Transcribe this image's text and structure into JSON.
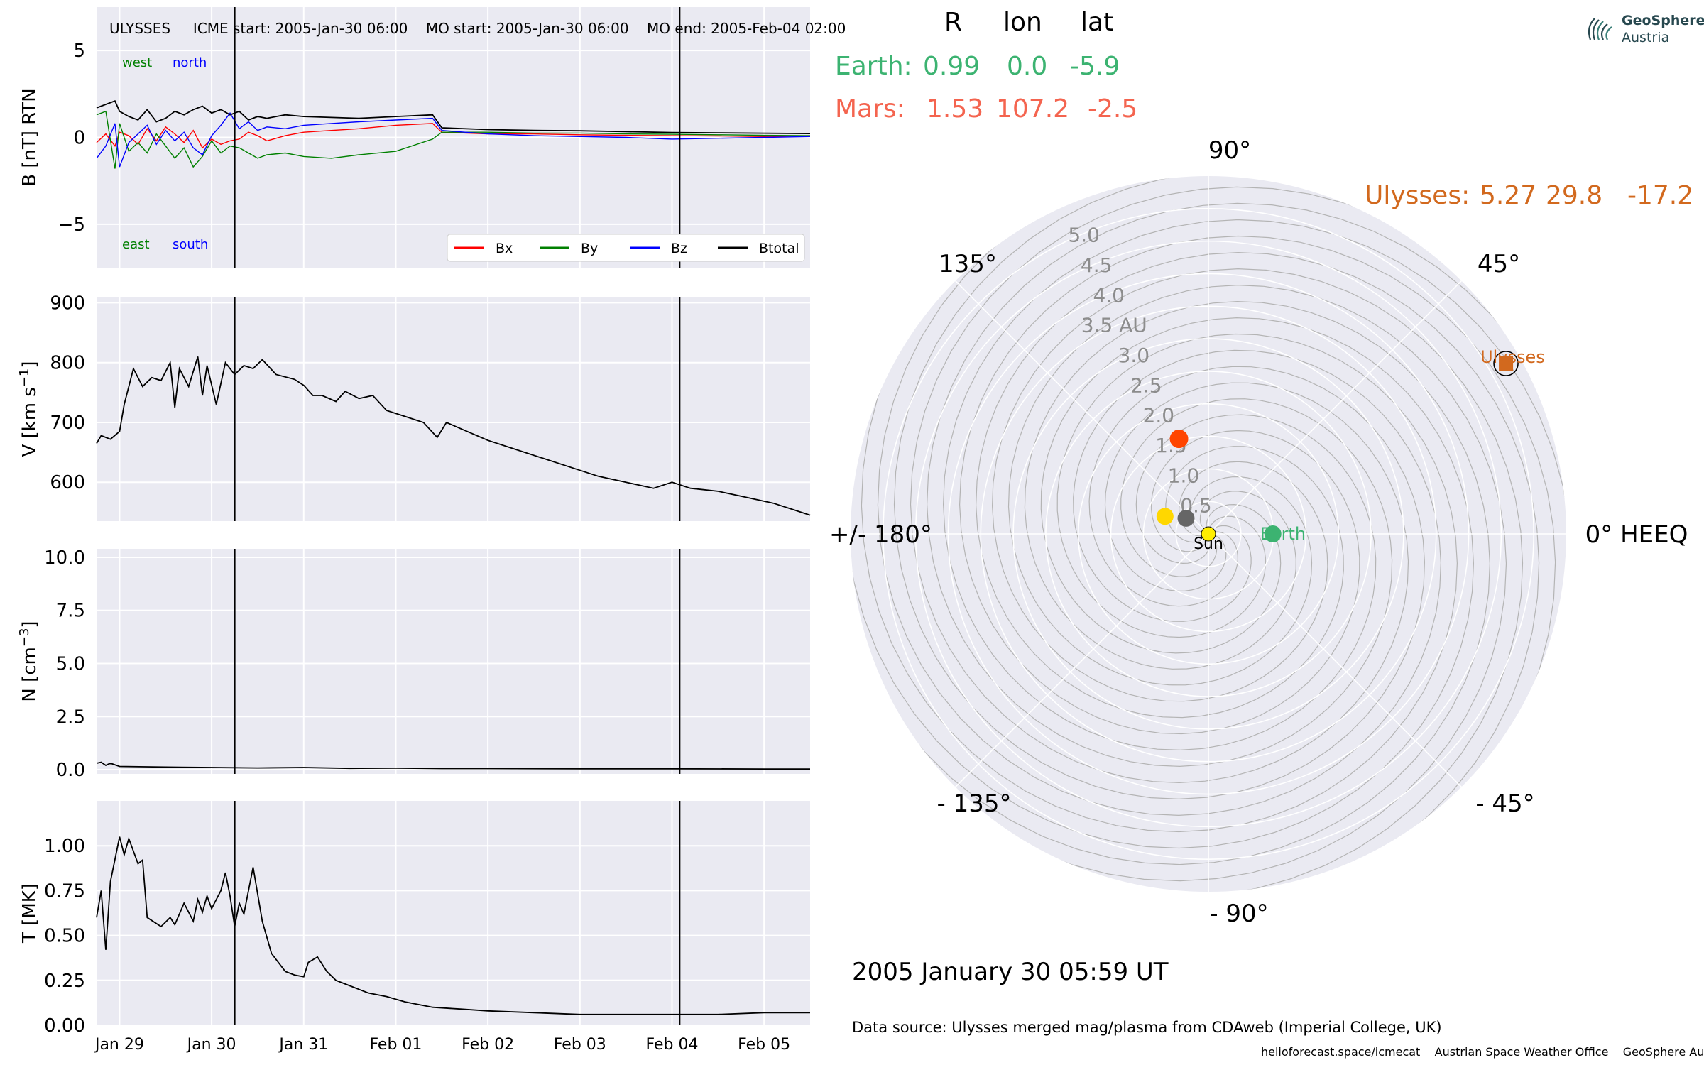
{
  "title": {
    "spacecraft": "ULYSSES",
    "icme_start": "ICME start: 2005-Jan-30 06:00",
    "mo_start": "MO start: 2005-Jan-30 06:00",
    "mo_end": "MO end: 2005-Feb-04 02:00"
  },
  "table": {
    "headers": [
      "R",
      "lon",
      "lat"
    ],
    "earth": {
      "label": "Earth:",
      "R": "0.99",
      "lon": "0.0",
      "lat": "-5.9"
    },
    "mars": {
      "label": "Mars:",
      "R": "1.53",
      "lon": "107.2",
      "lat": "-2.5"
    },
    "ulysses": {
      "label": "Ulysses:",
      "R": "5.27",
      "lon": "29.8",
      "lat": "-17.2"
    }
  },
  "date_text": "2005 January 30  05:59 UT",
  "data_source": "Data source: Ulysses merged mag/plasma from CDAweb (Imperial College, UK)",
  "footer": {
    "site": "helioforecast.space/icmecat",
    "office": "Austrian Space Weather Office",
    "org": "GeoSphere Austria"
  },
  "logo": {
    "line1": "GeoSphere",
    "line2": "Austria"
  },
  "colors": {
    "Bx": "#ff0000",
    "By": "#008000",
    "Bz": "#0000ff",
    "Btotal": "#000000",
    "earth": "#3cb371",
    "mars": "#ff4500",
    "ulysses": "#d2691e",
    "sun": "#ffee00",
    "venus": "#ffd700",
    "mercury": "#666666",
    "panel_bg": "#eaeaf2"
  },
  "chart_data": [
    {
      "type": "line",
      "id": "mag",
      "ylabel": "B [nT] RTN",
      "ylim": [
        -7.5,
        7.5
      ],
      "yticks": [
        -5,
        0,
        5
      ],
      "annotations": {
        "top_left": "west",
        "top_right": "north",
        "bottom_left": "east",
        "bottom_right": "south"
      },
      "x_unit": "days since 2005-01-28 00:00",
      "xlim": [
        0.75,
        8.5
      ],
      "xticks": [
        {
          "label": "Jan 29",
          "x": 1
        },
        {
          "label": "Jan 30",
          "x": 2
        },
        {
          "label": "Jan 31",
          "x": 3
        },
        {
          "label": "Feb 01",
          "x": 4
        },
        {
          "label": "Feb 02",
          "x": 5
        },
        {
          "label": "Feb 03",
          "x": 6
        },
        {
          "label": "Feb 04",
          "x": 7
        },
        {
          "label": "Feb 05",
          "x": 8
        }
      ],
      "vlines": [
        2.25,
        7.083
      ],
      "legend": {
        "placement": "bottom-right",
        "entries": [
          "Bx",
          "By",
          "Bz",
          "Btotal"
        ]
      },
      "series": [
        {
          "name": "Btotal",
          "x": [
            0.75,
            0.85,
            0.95,
            1.0,
            1.1,
            1.2,
            1.3,
            1.4,
            1.5,
            1.6,
            1.7,
            1.8,
            1.9,
            2.0,
            2.1,
            2.2,
            2.3,
            2.4,
            2.5,
            2.6,
            2.8,
            3.0,
            3.3,
            3.6,
            4.0,
            4.4,
            4.5,
            5.0,
            5.5,
            6.0,
            6.5,
            7.0,
            7.5,
            8.0,
            8.5
          ],
          "y": [
            1.7,
            1.9,
            2.1,
            1.5,
            1.2,
            1.0,
            1.6,
            0.9,
            1.1,
            1.5,
            1.3,
            1.6,
            1.8,
            1.4,
            1.6,
            1.3,
            1.5,
            1.0,
            1.2,
            1.1,
            1.3,
            1.2,
            1.15,
            1.1,
            1.2,
            1.3,
            0.55,
            0.45,
            0.4,
            0.38,
            0.33,
            0.28,
            0.26,
            0.24,
            0.22
          ]
        },
        {
          "name": "Bx",
          "x": [
            0.75,
            0.85,
            0.95,
            1.0,
            1.1,
            1.2,
            1.3,
            1.4,
            1.5,
            1.6,
            1.7,
            1.8,
            1.9,
            2.0,
            2.1,
            2.2,
            2.3,
            2.4,
            2.5,
            2.6,
            2.8,
            3.0,
            3.3,
            3.6,
            4.0,
            4.4,
            4.5,
            5.0,
            5.5,
            6.0,
            6.5,
            7.0,
            7.5,
            8.0,
            8.5
          ],
          "y": [
            -0.3,
            0.2,
            -0.5,
            0.3,
            0.1,
            -0.4,
            0.5,
            -0.2,
            0.6,
            0.2,
            -0.3,
            0.4,
            -0.6,
            -0.1,
            -0.4,
            -0.2,
            -0.1,
            0.3,
            0.1,
            -0.2,
            0.1,
            0.3,
            0.4,
            0.5,
            0.7,
            0.8,
            0.3,
            0.2,
            0.2,
            0.15,
            0.12,
            0.1,
            0.08,
            0.05,
            0.1
          ]
        },
        {
          "name": "By",
          "x": [
            0.75,
            0.85,
            0.95,
            1.0,
            1.1,
            1.2,
            1.3,
            1.4,
            1.5,
            1.6,
            1.7,
            1.8,
            1.9,
            2.0,
            2.1,
            2.2,
            2.3,
            2.4,
            2.5,
            2.6,
            2.8,
            3.0,
            3.3,
            3.6,
            4.0,
            4.4,
            4.5,
            5.0,
            5.5,
            6.0,
            6.5,
            7.0,
            7.5,
            8.0,
            8.5
          ],
          "y": [
            1.3,
            1.5,
            -1.8,
            0.8,
            -0.8,
            -0.3,
            -0.9,
            0.2,
            -0.5,
            -1.2,
            -0.6,
            -1.7,
            -1.1,
            -0.2,
            -0.9,
            -0.5,
            -0.6,
            -0.9,
            -1.2,
            -1.0,
            -0.9,
            -1.1,
            -1.2,
            -1.0,
            -0.8,
            -0.1,
            0.3,
            0.3,
            0.25,
            0.25,
            0.2,
            0.18,
            0.15,
            0.12,
            0.1
          ]
        },
        {
          "name": "Bz",
          "x": [
            0.75,
            0.85,
            0.95,
            1.0,
            1.1,
            1.2,
            1.3,
            1.4,
            1.5,
            1.6,
            1.7,
            1.8,
            1.9,
            2.0,
            2.1,
            2.2,
            2.3,
            2.4,
            2.5,
            2.6,
            2.8,
            3.0,
            3.3,
            3.6,
            4.0,
            4.4,
            4.5,
            5.0,
            5.5,
            6.0,
            6.5,
            7.0,
            7.5,
            8.0,
            8.5
          ],
          "y": [
            -1.2,
            -0.5,
            0.8,
            -1.7,
            -0.3,
            0.2,
            0.7,
            -0.4,
            0.4,
            -0.2,
            0.3,
            -0.6,
            -1.0,
            0.1,
            0.7,
            1.4,
            0.5,
            0.9,
            0.4,
            0.6,
            0.5,
            0.7,
            0.8,
            0.9,
            1.0,
            1.1,
            0.4,
            0.2,
            0.1,
            0.05,
            0.0,
            -0.1,
            -0.05,
            0.0,
            0.05
          ]
        }
      ]
    },
    {
      "type": "line",
      "id": "speed",
      "ylabel": "V [km s",
      "ylabel_sup": "−1",
      "ylabel_end": "]",
      "ylim": [
        535,
        910
      ],
      "yticks": [
        600,
        700,
        800,
        900
      ],
      "xlim": [
        0.75,
        8.5
      ],
      "vlines": [
        2.25,
        7.083
      ],
      "series": [
        {
          "name": "V",
          "x": [
            0.75,
            0.8,
            0.9,
            1.0,
            1.05,
            1.15,
            1.25,
            1.35,
            1.45,
            1.55,
            1.6,
            1.65,
            1.75,
            1.85,
            1.9,
            1.95,
            2.05,
            2.15,
            2.25,
            2.35,
            2.45,
            2.55,
            2.7,
            2.9,
            3.0,
            3.1,
            3.2,
            3.35,
            3.45,
            3.6,
            3.75,
            3.9,
            4.1,
            4.3,
            4.45,
            4.55,
            4.7,
            5.0,
            5.3,
            5.6,
            5.9,
            6.2,
            6.5,
            6.8,
            7.0,
            7.2,
            7.5,
            7.8,
            8.1,
            8.3,
            8.5
          ],
          "y": [
            665,
            678,
            672,
            685,
            730,
            790,
            760,
            775,
            770,
            800,
            725,
            790,
            760,
            810,
            745,
            795,
            730,
            800,
            780,
            795,
            790,
            805,
            780,
            772,
            762,
            745,
            745,
            735,
            752,
            740,
            745,
            720,
            710,
            700,
            675,
            700,
            690,
            670,
            655,
            640,
            625,
            610,
            600,
            590,
            600,
            590,
            585,
            575,
            565,
            555,
            545
          ]
        }
      ]
    },
    {
      "type": "line",
      "id": "density",
      "ylabel": "N [cm",
      "ylabel_sup": "−3",
      "ylabel_end": "]",
      "ylim": [
        -0.2,
        10.4
      ],
      "yticks": [
        0.0,
        2.5,
        5.0,
        7.5,
        10.0
      ],
      "xlim": [
        0.75,
        8.5
      ],
      "vlines": [
        2.25,
        7.083
      ],
      "series": [
        {
          "name": "N",
          "x": [
            0.75,
            0.8,
            0.85,
            0.9,
            1.0,
            1.5,
            2.0,
            2.5,
            3.0,
            3.5,
            4.0,
            4.5,
            5.0,
            6.0,
            7.0,
            8.0,
            8.5
          ],
          "y": [
            0.3,
            0.35,
            0.2,
            0.3,
            0.15,
            0.12,
            0.1,
            0.08,
            0.1,
            0.06,
            0.07,
            0.05,
            0.05,
            0.04,
            0.04,
            0.03,
            0.03
          ]
        }
      ]
    },
    {
      "type": "line",
      "id": "temperature",
      "ylabel": "T [MK]",
      "ylim": [
        0.0,
        1.25
      ],
      "yticks": [
        0.0,
        0.25,
        0.5,
        0.75,
        1.0
      ],
      "xlim": [
        0.75,
        8.5
      ],
      "vlines": [
        2.25,
        7.083
      ],
      "series": [
        {
          "name": "T",
          "x": [
            0.75,
            0.8,
            0.85,
            0.9,
            1.0,
            1.05,
            1.1,
            1.2,
            1.25,
            1.3,
            1.45,
            1.55,
            1.6,
            1.7,
            1.8,
            1.85,
            1.9,
            1.95,
            2.0,
            2.05,
            2.1,
            2.15,
            2.2,
            2.25,
            2.3,
            2.35,
            2.45,
            2.55,
            2.65,
            2.8,
            2.9,
            3.0,
            3.05,
            3.15,
            3.25,
            3.35,
            3.5,
            3.7,
            3.9,
            4.1,
            4.4,
            4.7,
            5.0,
            5.5,
            6.0,
            6.5,
            7.0,
            7.5,
            8.0,
            8.5
          ],
          "y": [
            0.6,
            0.75,
            0.42,
            0.8,
            1.05,
            0.95,
            1.04,
            0.9,
            0.92,
            0.6,
            0.55,
            0.6,
            0.56,
            0.68,
            0.58,
            0.7,
            0.63,
            0.72,
            0.65,
            0.7,
            0.75,
            0.85,
            0.72,
            0.55,
            0.68,
            0.62,
            0.88,
            0.58,
            0.4,
            0.3,
            0.28,
            0.27,
            0.35,
            0.38,
            0.3,
            0.25,
            0.22,
            0.18,
            0.16,
            0.13,
            0.1,
            0.09,
            0.08,
            0.07,
            0.06,
            0.06,
            0.06,
            0.06,
            0.07,
            0.07
          ]
        }
      ]
    },
    {
      "type": "scatter",
      "id": "polar-orbit",
      "projection": "polar",
      "r_unit": "AU",
      "r_max": 5.5,
      "r_ticks": [
        "0.5",
        "1.0",
        "1.5",
        "2.0",
        "2.5",
        "3.0",
        "3.5 AU",
        "4.0",
        "4.5",
        "5.0"
      ],
      "r_tick_values": [
        0.5,
        1.0,
        1.5,
        2.0,
        2.5,
        3.0,
        3.5,
        4.0,
        4.5,
        5.0
      ],
      "angle_labels": [
        {
          "label": "0° HEEQ",
          "angle": 0
        },
        {
          "label": "45°",
          "angle": 45
        },
        {
          "label": "90°",
          "angle": 90
        },
        {
          "label": "135°",
          "angle": 135
        },
        {
          "label": "+/- 180°",
          "angle": 180
        },
        {
          "label": "- 135°",
          "angle": -135
        },
        {
          "label": "- 90°",
          "angle": -90
        },
        {
          "label": "- 45°",
          "angle": -45
        }
      ],
      "bodies": [
        {
          "name": "Sun",
          "label": "Sun",
          "r": 0.0,
          "lon": 0.0
        },
        {
          "name": "Mercury",
          "label": "",
          "r": 0.42,
          "lon": 145
        },
        {
          "name": "Venus",
          "label": "",
          "r": 0.72,
          "lon": 158
        },
        {
          "name": "Earth",
          "label": "Earth",
          "r": 0.99,
          "lon": 0.0
        },
        {
          "name": "Mars",
          "label": "",
          "r": 1.53,
          "lon": 107.2
        },
        {
          "name": "Ulysses",
          "label": "Ulysses",
          "r": 5.27,
          "lon": 29.8
        }
      ],
      "spiral_count": 12
    }
  ]
}
